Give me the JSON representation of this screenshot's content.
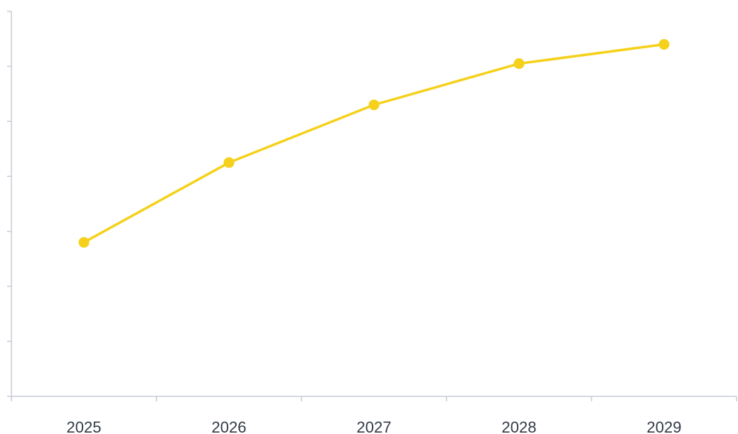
{
  "chart_data": {
    "type": "line",
    "categories": [
      "2025",
      "2026",
      "2027",
      "2028",
      "2029"
    ],
    "series": [
      {
        "values": [
          28,
          42.5,
          53,
          60.5,
          64
        ]
      }
    ],
    "xlabel": "",
    "ylabel": "",
    "ylim": [
      0,
      70
    ],
    "grid": false,
    "legend": "none",
    "colors": {
      "series": "#f5d11b",
      "axis": "#c8cbd6",
      "tick_label": "#333a45",
      "background": "#ffffff"
    }
  }
}
